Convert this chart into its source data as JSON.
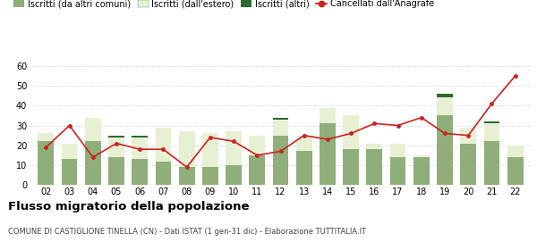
{
  "years": [
    "02",
    "03",
    "04",
    "05",
    "06",
    "07",
    "08",
    "09",
    "10",
    "11",
    "12",
    "13",
    "14",
    "15",
    "16",
    "17",
    "18",
    "19",
    "20",
    "21",
    "22"
  ],
  "iscritti_altri_comuni": [
    22,
    13,
    22,
    14,
    13,
    12,
    9,
    9,
    10,
    15,
    25,
    17,
    31,
    18,
    18,
    14,
    14,
    35,
    21,
    22,
    14
  ],
  "iscritti_estero": [
    4,
    8,
    12,
    10,
    11,
    17,
    18,
    17,
    17,
    10,
    8,
    8,
    8,
    17,
    3,
    7,
    1,
    9,
    8,
    9,
    6
  ],
  "iscritti_altri": [
    0,
    0,
    0,
    1,
    1,
    0,
    0,
    0,
    0,
    0,
    1,
    0,
    0,
    0,
    0,
    0,
    0,
    2,
    0,
    1,
    0
  ],
  "cancellati": [
    19,
    30,
    14,
    21,
    18,
    18,
    9,
    24,
    22,
    15,
    17,
    25,
    23,
    26,
    31,
    30,
    34,
    26,
    25,
    41,
    55
  ],
  "color_altri_comuni": "#8fae7a",
  "color_estero": "#e8f0d4",
  "color_altri": "#2d6a2d",
  "color_cancellati": "#cc2222",
  "title": "Flusso migratorio della popolazione",
  "subtitle": "COMUNE DI CASTIGLIONE TINELLA (CN) - Dati ISTAT (1 gen-31 dic) - Elaborazione TUTTITALIA.IT",
  "legend_labels": [
    "Iscritti (da altri comuni)",
    "Iscritti (dall'estero)",
    "Iscritti (altri)",
    "Cancellati dall'Anagrafe"
  ],
  "ylim": [
    0,
    63
  ],
  "yticks": [
    0,
    10,
    20,
    30,
    40,
    50,
    60
  ],
  "background_color": "#ffffff",
  "grid_color": "#cccccc"
}
